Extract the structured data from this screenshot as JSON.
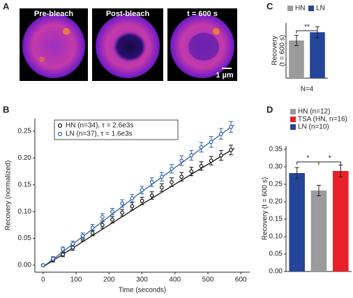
{
  "panel_labels": [
    "A",
    "B",
    "C",
    "D"
  ],
  "images": {
    "labels": [
      "Pre-bleach",
      "Post-bleach",
      "t = 600 s"
    ],
    "scale_bar": "1 µm"
  },
  "chart_data": [
    {
      "type": "line",
      "xlabel": "Time (seconds)",
      "ylabel": "Recovery (normalized)",
      "xlim": [
        -25,
        627
      ],
      "ylim": [
        -0.013,
        0.2734
      ],
      "xticks": [
        0,
        100,
        200,
        300,
        400,
        500,
        600
      ],
      "yticks": [
        {
          "value": 0,
          "label": "0.00"
        },
        0.05,
        {
          "value": 0.1,
          "label": "0.10"
        },
        0.15,
        {
          "value": 0.2,
          "label": "0.20"
        },
        0.25
      ],
      "legend": "upper left",
      "x": [
        0,
        30,
        60,
        90,
        120,
        150,
        180,
        210,
        240,
        270,
        300,
        330,
        360,
        390,
        420,
        450,
        480,
        510,
        540,
        570
      ],
      "series": [
        {
          "name": "HN (n=34), τ = 2.6e3s",
          "color": "#111111",
          "values": [
            0,
            0.01,
            0.02,
            0.033,
            0.05,
            0.06,
            0.075,
            0.085,
            0.098,
            0.11,
            0.12,
            0.13,
            0.145,
            0.155,
            0.165,
            0.175,
            0.185,
            0.195,
            0.205,
            0.215
          ],
          "errors": [
            0.002,
            0.004,
            0.004,
            0.005,
            0.005,
            0.005,
            0.006,
            0.006,
            0.006,
            0.007,
            0.007,
            0.007,
            0.007,
            0.008,
            0.008,
            0.008,
            0.008,
            0.008,
            0.009,
            0.009
          ],
          "fit": {
            "x": [
              0,
              290,
              580
            ],
            "values": [
              -0.003,
              0.11,
              0.218
            ]
          }
        },
        {
          "name": "LN (n=37), τ = 1.6e3s",
          "color": "#2e5fa8",
          "values": [
            0,
            0.012,
            0.03,
            0.04,
            0.055,
            0.07,
            0.09,
            0.1,
            0.115,
            0.125,
            0.14,
            0.155,
            0.165,
            0.18,
            0.195,
            0.205,
            0.22,
            0.23,
            0.245,
            0.258
          ],
          "errors": [
            0.002,
            0.004,
            0.004,
            0.005,
            0.005,
            0.006,
            0.006,
            0.006,
            0.007,
            0.007,
            0.007,
            0.008,
            0.008,
            0.008,
            0.009,
            0.009,
            0.009,
            0.01,
            0.01,
            0.01
          ],
          "fit": {
            "x": [
              0,
              290,
              580
            ],
            "values": [
              -0.003,
              0.133,
              0.262
            ]
          }
        }
      ]
    },
    {
      "type": "bar",
      "xlabel": "N=4",
      "ylabel": [
        "Recovery",
        "(t = 600 s)"
      ],
      "ylim": [
        0,
        0.3
      ],
      "legend": "top",
      "categories": [
        null,
        null
      ],
      "series": [
        {
          "name": "HN",
          "color": "#9b9b9b",
          "values": [
            0.205,
            null
          ],
          "errors": [
            0.028,
            null
          ]
        },
        {
          "name": "LN",
          "color": "#25459b",
          "values": [
            null,
            0.25
          ],
          "errors": [
            null,
            0.03
          ]
        }
      ],
      "annotations": [
        "**"
      ]
    },
    {
      "type": "bar",
      "ylabel": "Recovery (t = 600 s)",
      "ylim": [
        0,
        0.36
      ],
      "legend": "top",
      "categories": [
        null,
        null,
        null
      ],
      "yticks": [
        {
          "value": 0,
          "label": "0.00"
        },
        0.05,
        {
          "value": 0.1,
          "label": "0.10"
        },
        0.15,
        {
          "value": 0.2,
          "label": "0.20"
        },
        0.25,
        {
          "value": 0.3,
          "label": "0.30"
        },
        0.35
      ],
      "series": [
        {
          "name": "HN (n=12)",
          "color": "#9b9b9b",
          "values": [
            null,
            0.232,
            null
          ],
          "errors": [
            null,
            0.015,
            null
          ]
        },
        {
          "name": "TSA (HN, n=16)",
          "color": "#e8202a",
          "values": [
            null,
            null,
            0.288
          ],
          "errors": [
            null,
            null,
            0.017
          ]
        },
        {
          "name": "LN (n=10)",
          "color": "#25459b",
          "values": [
            0.282,
            null,
            null
          ],
          "errors": [
            0.016,
            null,
            null
          ]
        }
      ],
      "annotations": [
        "*",
        "*"
      ]
    }
  ]
}
